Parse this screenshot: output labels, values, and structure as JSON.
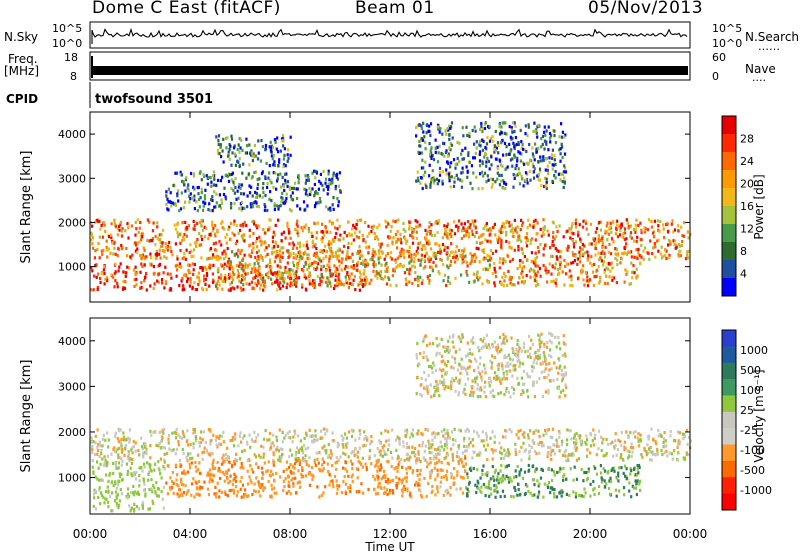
{
  "header": {
    "station": "Dome C East (fitACF)",
    "beam": "Beam 01",
    "date": "05/Nov/2013"
  },
  "noise_panel": {
    "left_label": "N.Sky",
    "left_top_tick": "10^5",
    "left_bottom_tick": "10^0",
    "right_label": "N.Search",
    "right_top_tick": "10^5",
    "right_bottom_tick": "10^0",
    "right_dots": "……"
  },
  "freq_panel": {
    "left_label_line1": "Freq.",
    "left_label_line2": "[MHz]",
    "left_top_tick": "18",
    "left_bottom_tick": "8",
    "right_label": "Nave",
    "right_top_tick": "60",
    "right_bottom_tick": "0",
    "right_dots": "····"
  },
  "cpid_panel": {
    "label": "CPID",
    "program": "twofsound 3501"
  },
  "colors": {
    "power_scale": [
      "#0000ff",
      "#1f4fa0",
      "#2e6b2e",
      "#4a9a4a",
      "#a7c13a",
      "#f2b817",
      "#ff9a00",
      "#ff6a00",
      "#ff2a00",
      "#e60000"
    ],
    "velocity_scale": [
      "#2a3fd0",
      "#1f5a9e",
      "#2e7a5c",
      "#3f9a5f",
      "#8ec83c",
      "#c8c8c0",
      "#cfcfc8",
      "#ff9a2a",
      "#ff6a00",
      "#ff2000",
      "#ff0000"
    ]
  },
  "chart_data": [
    {
      "type": "heatmap",
      "name": "power_panel",
      "ylabel": "Slant Range [km]",
      "xlabel": "",
      "x_ticks": [
        "00:00",
        "04:00",
        "08:00",
        "12:00",
        "16:00",
        "20:00",
        "00:00"
      ],
      "y_ticks": [
        "1000",
        "2000",
        "3000",
        "4000"
      ],
      "ylim": [
        200,
        4500
      ],
      "xlim_hours": [
        0,
        24
      ],
      "colorbar": {
        "label": "Power [dB]",
        "ticks": [
          "4",
          "8",
          "12",
          "16",
          "20",
          "24",
          "28"
        ],
        "range": [
          0,
          32
        ]
      },
      "bands": [
        {
          "t0": 0,
          "t1": 24,
          "r0": 1200,
          "r1": 2100,
          "intensity": 0.7
        },
        {
          "t0": 0,
          "t1": 11,
          "r0": 500,
          "r1": 1100,
          "intensity": 0.85
        },
        {
          "t0": 5,
          "t1": 16,
          "r0": 600,
          "r1": 1400,
          "intensity": 0.6
        },
        {
          "t0": 16,
          "t1": 22,
          "r0": 600,
          "r1": 1200,
          "intensity": 0.7
        },
        {
          "t0": 5,
          "t1": 8,
          "r0": 3300,
          "r1": 4000,
          "intensity": 0.25
        },
        {
          "t0": 13,
          "t1": 19,
          "r0": 2800,
          "r1": 4300,
          "intensity": 0.25
        },
        {
          "t0": 3,
          "t1": 10,
          "r0": 2300,
          "r1": 3200,
          "intensity": 0.2
        }
      ]
    },
    {
      "type": "heatmap",
      "name": "velocity_panel",
      "ylabel": "Slant Range [km]",
      "xlabel": "Time UT",
      "x_ticks": [
        "00:00",
        "04:00",
        "08:00",
        "12:00",
        "16:00",
        "20:00",
        "00:00"
      ],
      "y_ticks": [
        "1000",
        "2000",
        "3000",
        "4000"
      ],
      "ylim": [
        200,
        4500
      ],
      "xlim_hours": [
        0,
        24
      ],
      "colorbar": {
        "label": "Velocity [m s⁻¹]",
        "ticks": [
          "1000",
          "500",
          "100",
          "25",
          "-25",
          "-100",
          "-500",
          "-1000"
        ],
        "range": [
          -1000,
          1000
        ]
      },
      "bands": [
        {
          "t0": 0,
          "t1": 24,
          "r0": 1400,
          "r1": 2100,
          "vel": 0
        },
        {
          "t0": 0,
          "t1": 3,
          "r0": 300,
          "r1": 1400,
          "vel": 120
        },
        {
          "t0": 3,
          "t1": 13,
          "r0": 600,
          "r1": 1400,
          "vel": -200
        },
        {
          "t0": 13,
          "t1": 15,
          "r0": 600,
          "r1": 1500,
          "vel": -150
        },
        {
          "t0": 15,
          "t1": 22,
          "r0": 600,
          "r1": 1300,
          "vel": 300
        },
        {
          "t0": 13,
          "t1": 19,
          "r0": 2800,
          "r1": 4200,
          "vel": 0
        }
      ]
    }
  ]
}
